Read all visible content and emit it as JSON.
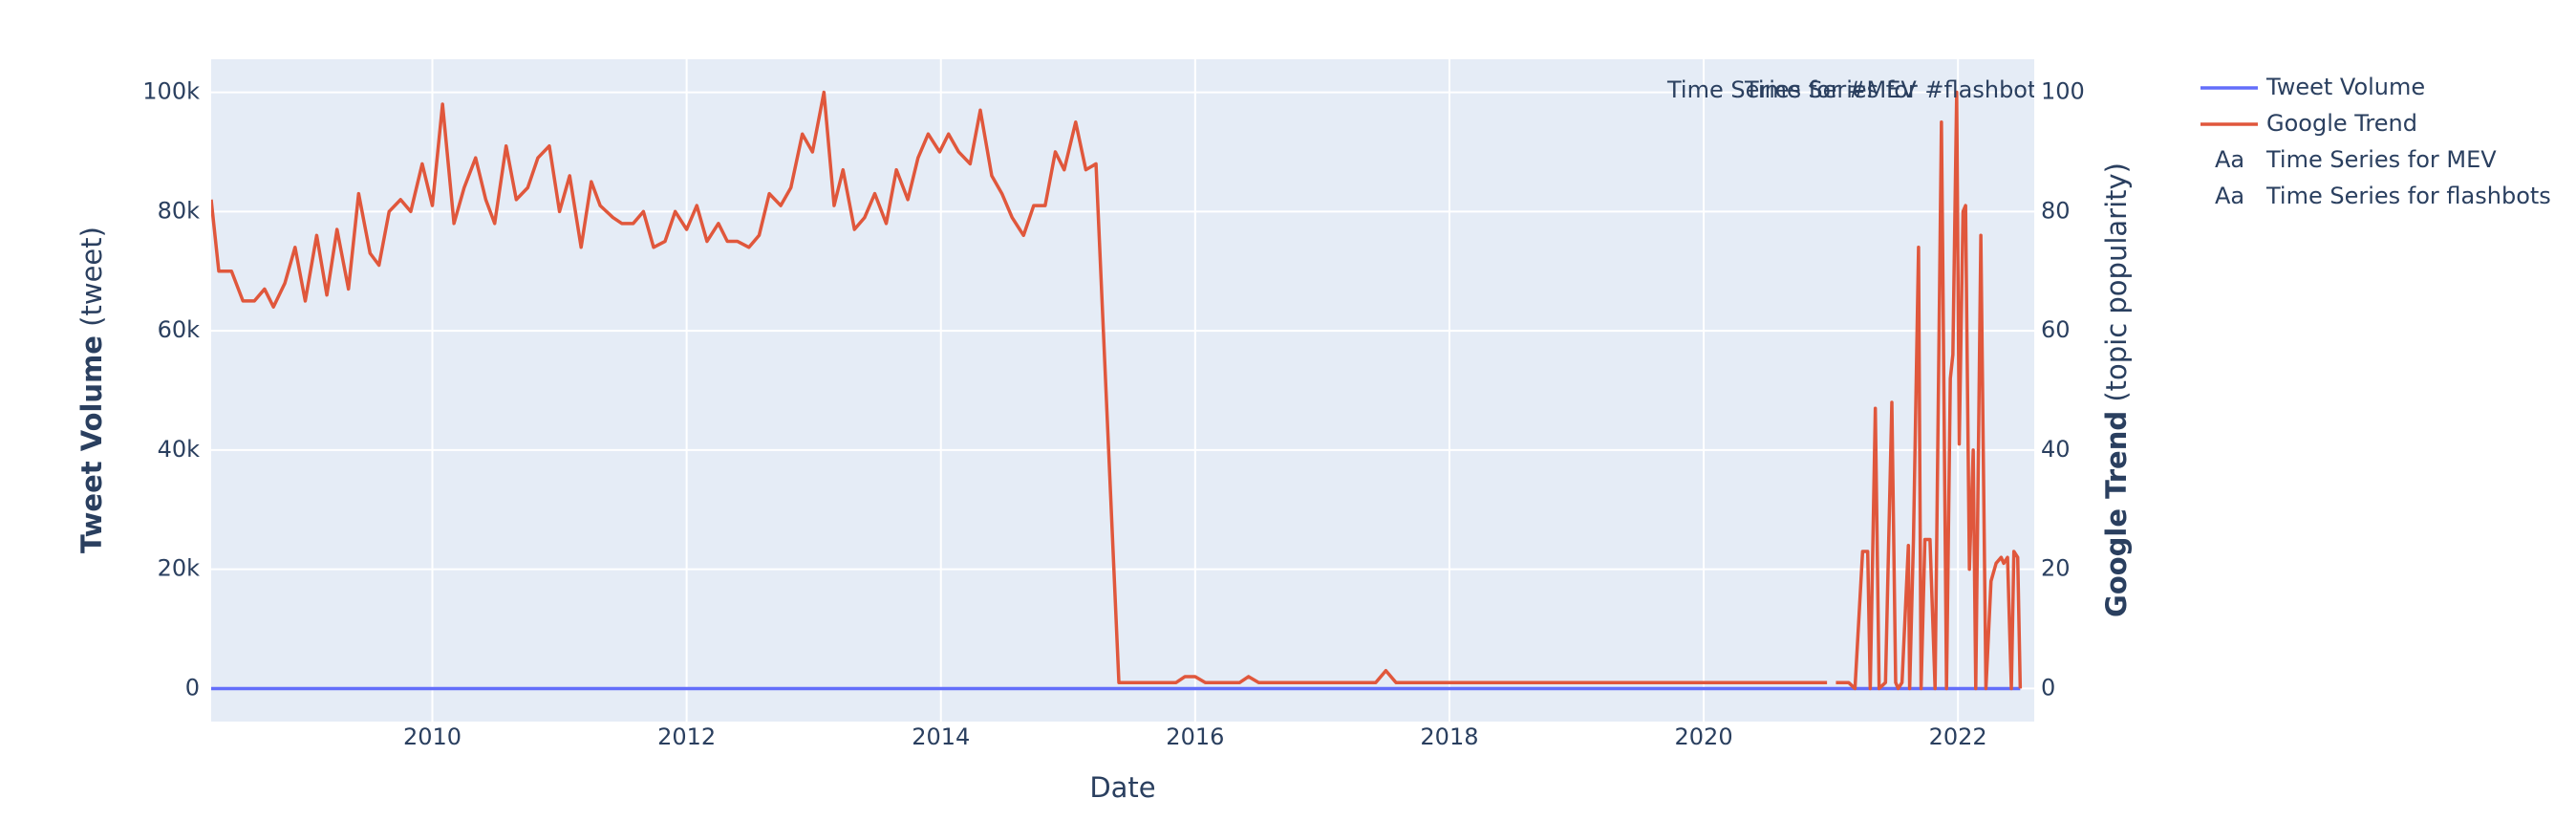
{
  "chart_data": {
    "type": "line",
    "xlabel": "Date",
    "ylabel": {
      "bold": "Tweet Volume",
      "rest": "(tweet)"
    },
    "y2label": {
      "bold": "Google Trend",
      "rest": "(topic popularity)"
    },
    "xlim": [
      2008.26,
      2022.6
    ],
    "xticks": [
      2010,
      2012,
      2014,
      2016,
      2018,
      2020,
      2022
    ],
    "ylim": [
      -5540,
      105540
    ],
    "yticks": [
      0,
      {
        "value": 20000,
        "label": "20k"
      },
      {
        "value": 40000,
        "label": "40k"
      },
      {
        "value": 60000,
        "label": "60k"
      },
      {
        "value": 80000,
        "label": "80k"
      },
      {
        "value": 100000,
        "label": "100k"
      }
    ],
    "y2lim": [
      -5.54,
      105.54
    ],
    "y2ticks": [
      0,
      20,
      40,
      60,
      80,
      100
    ],
    "grid": true,
    "legend_position": "outside right",
    "series": [
      {
        "name": "Tweet Volume",
        "color": "#636efa",
        "axis": "y",
        "x": [
          2008.26,
          2022.49
        ],
        "values": [
          0,
          0
        ]
      },
      {
        "name": "Google Trend",
        "color": "#e0573c",
        "axis": "y2",
        "x": [
          2008.26,
          2008.32,
          2008.42,
          2008.51,
          2008.6,
          2008.68,
          2008.75,
          2008.84,
          2008.92,
          2009.0,
          2009.09,
          2009.17,
          2009.25,
          2009.34,
          2009.42,
          2009.51,
          2009.58,
          2009.66,
          2009.75,
          2009.83,
          2009.92,
          2010.0,
          2010.08,
          2010.17,
          2010.25,
          2010.34,
          2010.42,
          2010.49,
          2010.58,
          2010.66,
          2010.75,
          2010.83,
          2010.92,
          2011.0,
          2011.08,
          2011.17,
          2011.25,
          2011.32,
          2011.42,
          2011.49,
          2011.58,
          2011.66,
          2011.74,
          2011.83,
          2011.91,
          2012.0,
          2012.08,
          2012.16,
          2012.25,
          2012.32,
          2012.4,
          2012.49,
          2012.57,
          2012.65,
          2012.74,
          2012.82,
          2012.91,
          2012.99,
          2013.08,
          2013.16,
          2013.23,
          2013.32,
          2013.4,
          2013.48,
          2013.57,
          2013.65,
          2013.74,
          2013.82,
          2013.9,
          2013.99,
          2014.06,
          2014.14,
          2014.23,
          2014.31,
          2014.4,
          2014.48,
          2014.56,
          2014.65,
          2014.73,
          2014.82,
          2014.9,
          2014.97,
          2015.06,
          2015.14,
          2015.22,
          2015.4,
          2015.85,
          2015.92,
          2016.0,
          2016.08,
          2016.35,
          2016.42,
          2016.5,
          2017.42,
          2017.5,
          2017.58,
          2020.97,
          2021.02,
          2021.04,
          2021.14,
          2021.19,
          2021.25,
          2021.29,
          2021.31,
          2021.35,
          2021.38,
          2021.43,
          2021.48,
          2021.51,
          2021.53,
          2021.56,
          2021.61,
          2021.62,
          2021.65,
          2021.69,
          2021.71,
          2021.74,
          2021.78,
          2021.82,
          2021.87,
          2021.88,
          2021.91,
          2021.94,
          2021.96,
          2021.99,
          2022.01,
          2022.04,
          2022.06,
          2022.09,
          2022.12,
          2022.14,
          2022.18,
          2022.22,
          2022.26,
          2022.3,
          2022.34,
          2022.36,
          2022.39,
          2022.42,
          2022.44,
          2022.47,
          2022.49
        ],
        "values": [
          82,
          70,
          70,
          65,
          65,
          67,
          64,
          68,
          74,
          65,
          76,
          66,
          77,
          67,
          83,
          73,
          71,
          80,
          82,
          80,
          88,
          81,
          98,
          78,
          84,
          89,
          82,
          78,
          91,
          82,
          84,
          89,
          91,
          80,
          86,
          74,
          85,
          81,
          79,
          78,
          78,
          80,
          74,
          75,
          80,
          77,
          81,
          75,
          78,
          75,
          75,
          74,
          76,
          83,
          81,
          84,
          93,
          90,
          100,
          81,
          87,
          77,
          79,
          83,
          78,
          87,
          82,
          89,
          93,
          90,
          93,
          90,
          88,
          97,
          86,
          83,
          79,
          76,
          81,
          81,
          90,
          87,
          95,
          87,
          88,
          1,
          1,
          2,
          2,
          1,
          1,
          2,
          1,
          1,
          3,
          1,
          1,
          null,
          1,
          1,
          0,
          23,
          23,
          0,
          47,
          0,
          1,
          48,
          1,
          0,
          1,
          24,
          0,
          25,
          74,
          0,
          25,
          25,
          0,
          95,
          73,
          0,
          52,
          56,
          100,
          41,
          80,
          81,
          20,
          40,
          0,
          76,
          0,
          18,
          21,
          22,
          21,
          22,
          0,
          23,
          22,
          0
        ]
      }
    ],
    "annotations": [
      "Time Series for #MEV",
      "Time Series for #flashbots"
    ],
    "legend_text_entries": [
      "Time Series for MEV",
      "Time Series for flashbots"
    ]
  }
}
